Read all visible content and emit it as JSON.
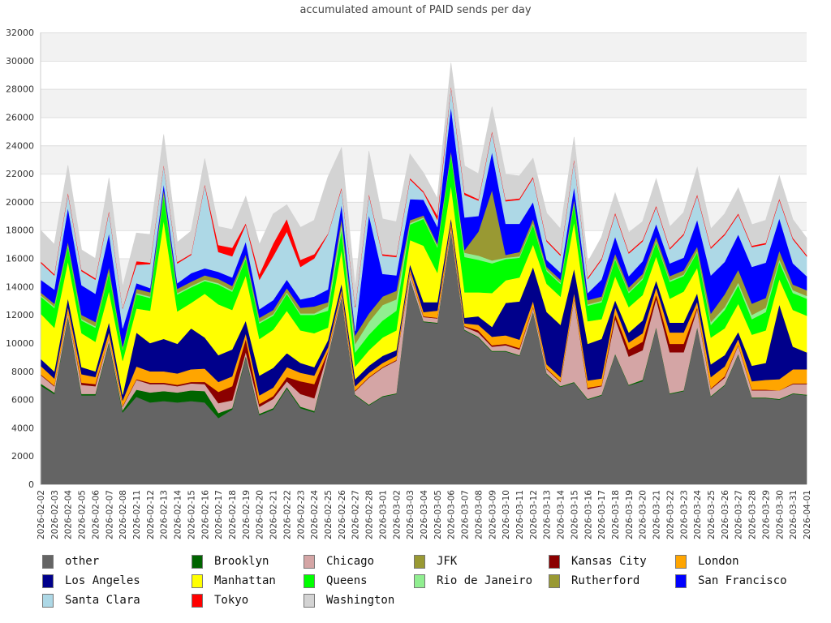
{
  "chart_data": {
    "type": "area",
    "stacked": true,
    "title": "accumulated amount of PAID sends per day",
    "xlabel": "",
    "ylabel": "",
    "ylim": [
      0,
      32000
    ],
    "yticks": [
      0,
      2000,
      4000,
      6000,
      8000,
      10000,
      12000,
      14000,
      16000,
      18000,
      20000,
      22000,
      24000,
      26000,
      28000,
      30000,
      32000
    ],
    "grid": true,
    "legend_position": "bottom",
    "x": [
      "2026-02-02",
      "2026-02-03",
      "2026-02-04",
      "2026-02-05",
      "2026-02-06",
      "2026-02-07",
      "2026-02-08",
      "2026-02-11",
      "2026-02-12",
      "2026-02-13",
      "2026-02-14",
      "2026-02-15",
      "2026-02-16",
      "2026-02-17",
      "2026-02-18",
      "2026-02-19",
      "2026-02-20",
      "2026-02-21",
      "2026-02-22",
      "2026-02-23",
      "2026-02-24",
      "2026-02-25",
      "2026-02-26",
      "2026-02-27",
      "2026-02-28",
      "2026-03-01",
      "2026-03-02",
      "2026-03-03",
      "2026-03-04",
      "2026-03-05",
      "2026-03-06",
      "2026-03-07",
      "2026-03-08",
      "2026-03-09",
      "2026-03-10",
      "2026-03-11",
      "2026-03-12",
      "2026-03-13",
      "2026-03-14",
      "2026-03-15",
      "2026-03-16",
      "2026-03-17",
      "2026-03-18",
      "2026-03-19",
      "2026-03-20",
      "2026-03-21",
      "2026-03-22",
      "2026-03-23",
      "2026-03-24",
      "2026-03-25",
      "2026-03-26",
      "2026-03-27",
      "2026-03-28",
      "2026-03-29",
      "2026-03-30",
      "2026-03-31",
      "2026-04-01"
    ],
    "series": [
      {
        "name": "other",
        "color": "#646464",
        "values": [
          7000,
          6400,
          11800,
          6300,
          6300,
          10000,
          5100,
          6200,
          5800,
          5900,
          5800,
          5900,
          5800,
          4700,
          5300,
          9000,
          4900,
          5300,
          6800,
          5400,
          5100,
          9000,
          13200,
          6300,
          5600,
          6200,
          6400,
          14500,
          11500,
          11400,
          17900,
          10900,
          10400,
          9400,
          9400,
          9100,
          12200,
          7800,
          6900,
          7200,
          6000,
          6300,
          9200,
          7000,
          7300,
          11100,
          6400,
          6600,
          11100,
          6200,
          7000,
          9200,
          6100,
          6100,
          6000,
          6400,
          6300
        ]
      },
      {
        "name": "Brooklyn",
        "color": "#006400",
        "values": [
          150,
          100,
          100,
          100,
          100,
          100,
          150,
          500,
          700,
          700,
          700,
          750,
          800,
          350,
          100,
          100,
          100,
          100,
          100,
          100,
          100,
          50,
          50,
          50,
          50,
          50,
          50,
          50,
          50,
          50,
          50,
          50,
          50,
          50,
          50,
          50,
          50,
          50,
          50,
          50,
          50,
          50,
          50,
          50,
          100,
          50,
          50,
          50,
          50,
          50,
          50,
          50,
          50,
          50,
          50,
          50,
          50
        ]
      },
      {
        "name": "Chicago",
        "color": "#d4a5a5",
        "values": [
          600,
          450,
          300,
          650,
          550,
          300,
          250,
          700,
          600,
          500,
          450,
          500,
          500,
          700,
          550,
          300,
          500,
          650,
          400,
          900,
          900,
          300,
          250,
          250,
          1900,
          2000,
          2300,
          400,
          300,
          300,
          300,
          200,
          300,
          300,
          400,
          400,
          300,
          300,
          300,
          5900,
          700,
          600,
          2500,
          2000,
          2100,
          2000,
          2900,
          2700,
          1300,
          500,
          500,
          600,
          500,
          500,
          600,
          650,
          750
        ]
      },
      {
        "name": "JFK",
        "color": "#999933",
        "values": [
          0,
          0,
          0,
          0,
          0,
          0,
          0,
          0,
          0,
          0,
          0,
          0,
          0,
          0,
          0,
          0,
          0,
          0,
          0,
          0,
          0,
          0,
          0,
          0,
          0,
          0,
          0,
          0,
          0,
          0,
          0,
          0,
          0,
          0,
          0,
          0,
          0,
          0,
          0,
          0,
          0,
          0,
          0,
          0,
          0,
          0,
          0,
          0,
          0,
          0,
          0,
          0,
          0,
          0,
          0,
          0,
          0
        ]
      },
      {
        "name": "Kansas City",
        "color": "#8b0000",
        "values": [
          50,
          50,
          0,
          150,
          150,
          0,
          50,
          50,
          100,
          100,
          100,
          100,
          150,
          800,
          1000,
          900,
          200,
          200,
          300,
          900,
          1000,
          50,
          50,
          50,
          50,
          50,
          50,
          50,
          50,
          50,
          50,
          50,
          150,
          100,
          100,
          100,
          50,
          50,
          50,
          50,
          100,
          50,
          300,
          500,
          600,
          300,
          600,
          600,
          100,
          50,
          100,
          50,
          50,
          50,
          0,
          50,
          50
        ]
      },
      {
        "name": "London",
        "color": "#ffa500",
        "values": [
          600,
          500,
          400,
          600,
          500,
          400,
          400,
          900,
          800,
          800,
          800,
          900,
          950,
          700,
          700,
          400,
          600,
          600,
          700,
          600,
          600,
          300,
          300,
          300,
          300,
          300,
          300,
          300,
          300,
          500,
          300,
          200,
          400,
          600,
          600,
          600,
          400,
          300,
          300,
          400,
          500,
          500,
          500,
          500,
          600,
          500,
          800,
          800,
          400,
          800,
          700,
          400,
          600,
          700,
          800,
          1000,
          1000
        ]
      },
      {
        "name": "Los Angeles",
        "color": "#00008b",
        "values": [
          500,
          500,
          600,
          500,
          400,
          700,
          400,
          2400,
          2000,
          2300,
          2100,
          2900,
          2200,
          1900,
          1900,
          900,
          1400,
          1400,
          1000,
          700,
          600,
          500,
          400,
          500,
          500,
          500,
          400,
          300,
          700,
          600,
          300,
          400,
          600,
          700,
          2300,
          2700,
          2400,
          3700,
          3700,
          1700,
          2600,
          2800,
          500,
          700,
          900,
          500,
          700,
          700,
          600,
          900,
          800,
          500,
          1100,
          1200,
          5300,
          1600,
          1200
        ]
      },
      {
        "name": "Manhattan",
        "color": "#ffff00",
        "values": [
          3200,
          3100,
          2600,
          2400,
          2100,
          2200,
          2400,
          1700,
          2300,
          8400,
          2300,
          1800,
          3100,
          3600,
          2800,
          3200,
          2600,
          2700,
          3000,
          2300,
          2400,
          900,
          2400,
          900,
          1100,
          1300,
          1400,
          1700,
          4000,
          2100,
          2300,
          1800,
          1700,
          2400,
          1600,
          1700,
          1600,
          2000,
          2000,
          3300,
          1600,
          1400,
          1700,
          1800,
          1800,
          1700,
          1700,
          2200,
          1800,
          1900,
          1900,
          2000,
          2200,
          2300,
          1800,
          2600,
          2600
        ]
      },
      {
        "name": "Queens",
        "color": "#00ff00",
        "values": [
          1200,
          1400,
          1100,
          900,
          1000,
          1300,
          800,
          1000,
          900,
          1800,
          1200,
          1100,
          900,
          1400,
          1300,
          1200,
          1100,
          1000,
          1200,
          1100,
          1300,
          1200,
          1400,
          1000,
          1100,
          1200,
          1400,
          1100,
          1900,
          1800,
          2200,
          2500,
          2300,
          2100,
          1500,
          1400,
          1400,
          900,
          900,
          1300,
          1100,
          1200,
          1200,
          1000,
          1100,
          1000,
          1200,
          1100,
          1100,
          900,
          1300,
          1300,
          1100,
          1300,
          1200,
          1200,
          1200
        ]
      },
      {
        "name": "Rio de Janeiro",
        "color": "#90ee90",
        "values": [
          100,
          100,
          100,
          100,
          100,
          100,
          50,
          100,
          100,
          100,
          100,
          100,
          100,
          100,
          100,
          100,
          100,
          100,
          100,
          100,
          100,
          300,
          400,
          600,
          900,
          1100,
          800,
          100,
          100,
          100,
          100,
          300,
          300,
          200,
          100,
          100,
          100,
          100,
          100,
          100,
          100,
          100,
          100,
          100,
          100,
          100,
          100,
          100,
          100,
          200,
          200,
          200,
          300,
          300,
          200,
          200,
          200
        ]
      },
      {
        "name": "Rutherford",
        "color": "#999933",
        "values": [
          200,
          200,
          200,
          300,
          300,
          300,
          150,
          300,
          300,
          300,
          300,
          300,
          300,
          300,
          300,
          200,
          300,
          300,
          300,
          400,
          500,
          300,
          400,
          600,
          600,
          600,
          600,
          200,
          150,
          150,
          150,
          200,
          1700,
          5000,
          200,
          300,
          300,
          200,
          200,
          200,
          300,
          300,
          300,
          300,
          300,
          300,
          300,
          300,
          300,
          600,
          900,
          900,
          800,
          700,
          600,
          400,
          400
        ]
      },
      {
        "name": "San Francisco",
        "color": "#0000ff",
        "values": [
          900,
          1000,
          2400,
          2100,
          2000,
          2400,
          1300,
          400,
          300,
          400,
          400,
          600,
          500,
          500,
          600,
          900,
          600,
          700,
          600,
          600,
          700,
          900,
          1000,
          300,
          7000,
          1600,
          1100,
          1500,
          1100,
          1200,
          3100,
          2300,
          1100,
          2700,
          2200,
          2000,
          1200,
          500,
          500,
          900,
          500,
          1200,
          1200,
          800,
          900,
          900,
          900,
          900,
          1900,
          2700,
          2300,
          2500,
          2600,
          2500,
          2300,
          1500,
          1000
        ]
      },
      {
        "name": "Santa Clara",
        "color": "#add8e6",
        "values": [
          1200,
          1000,
          1000,
          1000,
          1000,
          1500,
          1400,
          1300,
          1700,
          1300,
          1400,
          1300,
          5900,
          1400,
          1500,
          1200,
          2100,
          3100,
          3400,
          2300,
          2700,
          3900,
          1100,
          1700,
          1400,
          1300,
          1300,
          1400,
          500,
          500,
          1400,
          1600,
          1100,
          1400,
          1600,
          1700,
          1700,
          1300,
          1200,
          1900,
          1000,
          1400,
          1600,
          1600,
          1400,
          1200,
          1000,
          1600,
          1700,
          1900,
          1900,
          1400,
          1400,
          1300,
          1300,
          1700,
          1400
        ]
      },
      {
        "name": "Tokyo",
        "color": "#ff0000",
        "values": [
          100,
          100,
          100,
          100,
          100,
          100,
          50,
          250,
          100,
          80,
          100,
          80,
          80,
          500,
          600,
          100,
          400,
          900,
          900,
          500,
          300,
          50,
          100,
          100,
          100,
          100,
          100,
          100,
          100,
          300,
          100,
          150,
          100,
          100,
          100,
          100,
          100,
          100,
          100,
          100,
          100,
          100,
          100,
          100,
          100,
          100,
          100,
          100,
          100,
          100,
          100,
          100,
          100,
          100,
          100,
          100,
          100
        ]
      },
      {
        "name": "Washington",
        "color": "#d3d3d3",
        "values": [
          2200,
          2100,
          1900,
          1400,
          1400,
          2300,
          1500,
          2000,
          2000,
          2100,
          1400,
          1600,
          1800,
          1300,
          1300,
          1900,
          2100,
          2100,
          1000,
          2300,
          2400,
          4000,
          2800,
          1300,
          3000,
          2500,
          2400,
          1700,
          1300,
          1200,
          1600,
          1900,
          1800,
          1700,
          1800,
          1600,
          1300,
          1900,
          1800,
          1500,
          1100,
          1500,
          1400,
          1400,
          1300,
          1900,
          1500,
          1500,
          1900,
          1300,
          1400,
          1800,
          1500,
          1600,
          1600,
          1300,
          1200
        ]
      }
    ]
  }
}
